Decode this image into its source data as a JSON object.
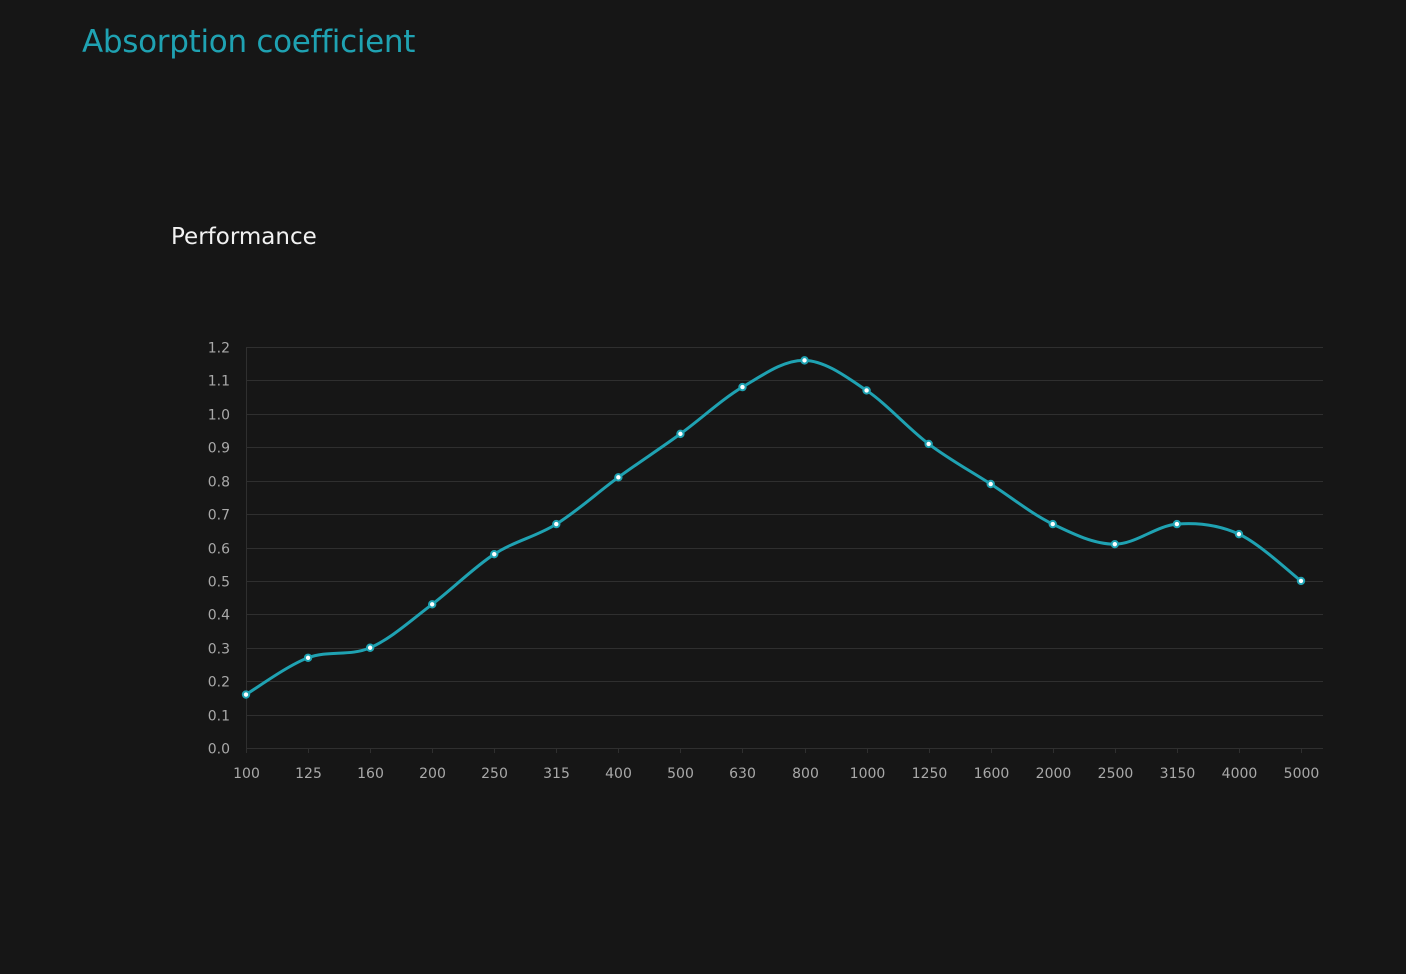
{
  "page": {
    "title": "Absorption coefficient"
  },
  "colors": {
    "background": "#161616",
    "accent": "#1fa2b2",
    "grid": "#2f2f2f",
    "tick_text": "#a9a9a9"
  },
  "chart_data": {
    "type": "line",
    "title": "Performance",
    "xlabel": "",
    "ylabel": "",
    "categories": [
      "100",
      "125",
      "160",
      "200",
      "250",
      "315",
      "400",
      "500",
      "630",
      "800",
      "1000",
      "1250",
      "1600",
      "2000",
      "2500",
      "3150",
      "4000",
      "5000"
    ],
    "series": [
      {
        "values": [
          0.16,
          0.27,
          0.3,
          0.43,
          0.58,
          0.67,
          0.81,
          0.94,
          1.08,
          1.16,
          1.07,
          0.91,
          0.79,
          0.67,
          0.61,
          0.67,
          0.64,
          0.5
        ],
        "color": "#1fa2b2"
      }
    ],
    "ylim": [
      0,
      1.2
    ],
    "yticks": [
      "0.0",
      "0.1",
      "0.2",
      "0.3",
      "0.4",
      "0.5",
      "0.6",
      "0.7",
      "0.8",
      "0.9",
      "1.0",
      "1.1",
      "1.2"
    ],
    "grid": true,
    "smooth": true,
    "markers": true,
    "legend": "none"
  }
}
